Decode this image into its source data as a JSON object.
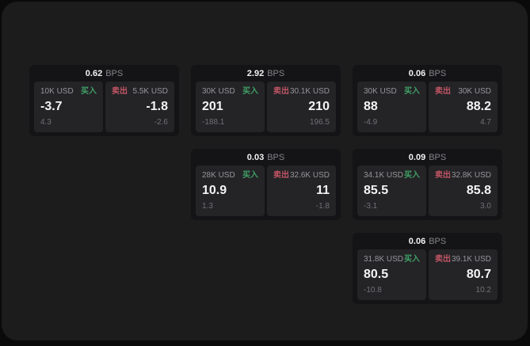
{
  "labels": {
    "bps_unit": "BPS",
    "buy": "买入",
    "sell": "卖出"
  },
  "colors": {
    "buy_green": "#40a065",
    "sell_red": "#c25565",
    "panel_bg": "#1c1c1d",
    "card_bg": "#141416",
    "tile_bg": "#242427"
  },
  "cards": [
    {
      "bps": "0.62",
      "buy": {
        "size": "10K USD",
        "value": "-3.7",
        "sub": "4.3"
      },
      "sell": {
        "size": "5.5K USD",
        "value": "-1.8",
        "sub": "-2.6"
      }
    },
    {
      "bps": "2.92",
      "buy": {
        "size": "30K USD",
        "value": "201",
        "sub": "-188.1"
      },
      "sell": {
        "size": "30.1K USD",
        "value": "210",
        "sub": "196.5"
      }
    },
    {
      "bps": "0.06",
      "buy": {
        "size": "30K USD",
        "value": "88",
        "sub": "-4.9"
      },
      "sell": {
        "size": "30K USD",
        "value": "88.2",
        "sub": "4.7"
      }
    },
    {
      "bps": "0.03",
      "buy": {
        "size": "28K USD",
        "value": "10.9",
        "sub": "1.3"
      },
      "sell": {
        "size": "32.6K USD",
        "value": "11",
        "sub": "-1.8"
      }
    },
    {
      "bps": "0.09",
      "buy": {
        "size": "34.1K USD",
        "value": "85.5",
        "sub": "-3.1"
      },
      "sell": {
        "size": "32.8K USD",
        "value": "85.8",
        "sub": "3.0"
      }
    },
    {
      "bps": "0.06",
      "buy": {
        "size": "31.8K USD",
        "value": "80.5",
        "sub": "-10.8"
      },
      "sell": {
        "size": "39.1K USD",
        "value": "80.7",
        "sub": "10.2"
      }
    }
  ]
}
